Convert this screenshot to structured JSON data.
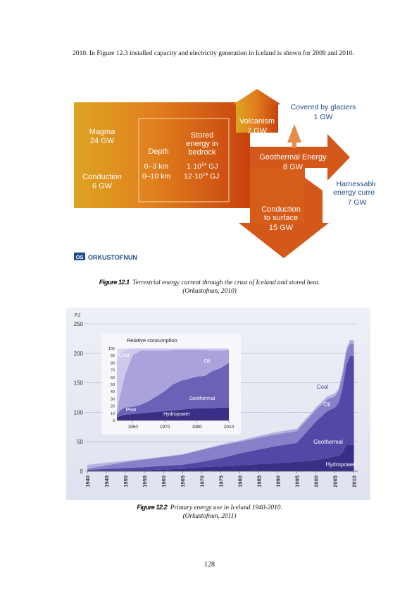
{
  "body_text": "2010.  In Figure 12.3 installed capacity and electricity generation in Iceland is shown for 2009 and 2010.",
  "figure1": {
    "magma_label": "Magma",
    "magma_value": "24 GW",
    "conduction_label": "Conduction",
    "conduction_value": "6 GW",
    "depth_header": "Depth",
    "depth_1": "0–3 km",
    "depth_2": "0–10 km",
    "stored_header_1": "Stored",
    "stored_header_2": "energy in",
    "stored_header_3": "bedrock",
    "stored_1_mantissa": "1·10",
    "stored_1_exp": "14",
    "stored_1_unit": " GJ",
    "stored_2_mantissa": "12·10",
    "stored_2_exp": "14",
    "stored_2_unit": " GJ",
    "volcanism_label": "Volcanism",
    "volcanism_value": "7 GW",
    "glaciers_label": "Covered by glaciers",
    "glaciers_value": "1 GW",
    "geothermal_label": "Geothermal Energy",
    "geothermal_value": "8 GW",
    "harnessable_1": "Harnessable",
    "harnessable_2": "energy current",
    "harnessable_value": "7 GW",
    "surface_1": "Conduction",
    "surface_2": "to surface",
    "surface_value": "15 GW",
    "logo_text": "ORKUSTOFNUN",
    "logo_mark": "OS",
    "colors": {
      "gold": "#d9a020",
      "orange": "#e07020",
      "red_orange": "#cc4a10",
      "text_blue": "#234a86"
    }
  },
  "caption1": {
    "label": "Figure 12.1",
    "text": "Terrestrial energy current through the crust of Iceland and stored heat.",
    "source": "(Orkustofnun, 2010)"
  },
  "chart_data": [
    {
      "type": "area",
      "ylabel": "PJ",
      "ylim": [
        0,
        250
      ],
      "yticks": [
        0,
        50,
        100,
        150,
        200,
        250
      ],
      "xlim": [
        1940,
        2011
      ],
      "xticks": [
        1940,
        1945,
        1950,
        1955,
        1960,
        1965,
        1970,
        1975,
        1980,
        1985,
        1990,
        1995,
        2000,
        2005,
        2010
      ],
      "grid": true,
      "stacked": true,
      "x": [
        1940,
        1945,
        1950,
        1955,
        1960,
        1965,
        1970,
        1975,
        1980,
        1985,
        1990,
        1995,
        2000,
        2003,
        2005,
        2006,
        2007,
        2008,
        2009,
        2010
      ],
      "series": [
        {
          "name": "Hydropower",
          "color": "#3a2f86",
          "values": [
            0.5,
            1,
            1.5,
            2,
            3,
            4,
            7,
            8,
            10,
            12,
            14,
            16,
            19,
            22,
            25,
            26,
            31,
            45,
            45,
            45
          ]
        },
        {
          "name": "Geothermal",
          "color": "#5248a6",
          "values": [
            2,
            3,
            4,
            5,
            6,
            7,
            9,
            14,
            20,
            25,
            29,
            32,
            65,
            80,
            83,
            90,
            110,
            135,
            150,
            150
          ]
        },
        {
          "name": "Oil",
          "color": "#8880c8",
          "values": [
            2,
            6,
            10,
            13,
            15,
            17,
            20,
            22,
            20,
            20,
            20,
            20,
            20,
            20,
            19,
            20,
            22,
            22,
            22,
            21
          ]
        },
        {
          "name": "Coal",
          "color": "#b6b0df",
          "values": [
            6,
            4,
            2,
            1,
            1,
            1,
            1,
            1,
            2,
            3,
            4,
            4,
            4,
            5,
            5,
            5,
            6,
            6,
            6,
            6
          ]
        },
        {
          "name": "Peat",
          "color": "#cfcaea",
          "values": [
            1,
            1,
            0.5,
            0,
            0,
            0,
            0,
            0,
            0,
            0,
            0,
            0,
            0,
            0,
            0,
            0,
            0,
            0,
            0,
            0
          ]
        }
      ]
    },
    {
      "type": "area",
      "title": "Relative consumption",
      "ylim": [
        0,
        100
      ],
      "yticks": [
        0,
        10,
        20,
        30,
        40,
        50,
        60,
        70,
        80,
        90,
        100
      ],
      "xlim": [
        1940,
        2010
      ],
      "xticks": [
        1950,
        1970,
        1990,
        2010
      ],
      "stacked": true,
      "x": [
        1940,
        1942,
        1945,
        1950,
        1955,
        1960,
        1965,
        1970,
        1975,
        1980,
        1985,
        1990,
        1995,
        2000,
        2005,
        2010
      ],
      "series": [
        {
          "name": "Hydropower",
          "color": "#3a2f86",
          "values": [
            4,
            6,
            8,
            9,
            10,
            11,
            12,
            13,
            14,
            15,
            16,
            17,
            17,
            17,
            18,
            18
          ]
        },
        {
          "name": "Geothermal",
          "color": "#6a62b6",
          "values": [
            4,
            8,
            10,
            10,
            12,
            16,
            22,
            28,
            36,
            40,
            42,
            44,
            45,
            52,
            55,
            62
          ]
        },
        {
          "name": "Oil",
          "color": "#aaa3db",
          "values": [
            5,
            20,
            45,
            72,
            75,
            70,
            63,
            56,
            48,
            43,
            40,
            37,
            36,
            28,
            24,
            18
          ]
        },
        {
          "name": "Coal",
          "color": "#cdc8ec",
          "values": [
            70,
            60,
            35,
            9,
            3,
            3,
            3,
            3,
            2,
            2,
            2,
            2,
            2,
            3,
            3,
            2
          ]
        },
        {
          "name": "Peat",
          "color": "#dedaf4",
          "values": [
            17,
            6,
            2,
            0,
            0,
            0,
            0,
            0,
            0,
            0,
            0,
            0,
            0,
            0,
            0,
            0
          ]
        }
      ]
    }
  ],
  "caption2": {
    "label": "Figure 12.2",
    "text": "Primary energy use in Iceland 1940-2010.",
    "source": "(Orkustofnun, 2011)"
  },
  "page_number": "128"
}
